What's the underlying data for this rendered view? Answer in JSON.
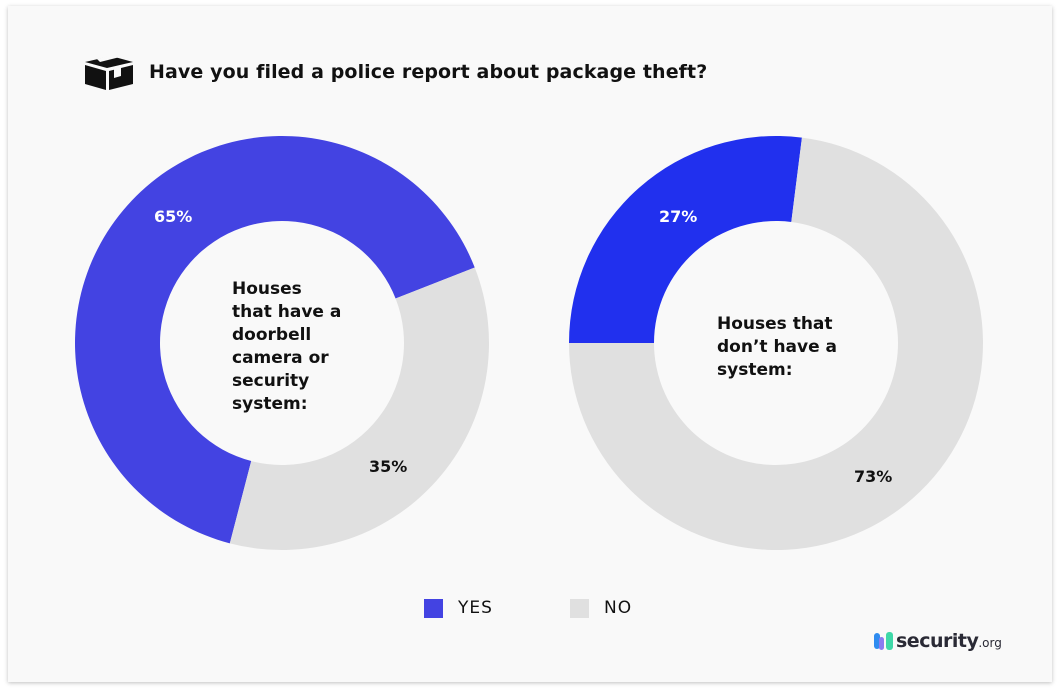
{
  "title": "Have you filed a police report about package theft?",
  "icon": "package-box-icon",
  "colors": {
    "yes_left": "#4343e2",
    "yes_right": "#2130ee",
    "no": "#e0e0e0",
    "background": "#f9f9f9"
  },
  "chart_data": [
    {
      "type": "pie",
      "variant": "donut",
      "center_label": "Houses that have a doorbell camera or security system:",
      "categories": [
        "YES",
        "NO"
      ],
      "values": [
        65,
        35
      ],
      "labels": [
        "65%",
        "35%"
      ]
    },
    {
      "type": "pie",
      "variant": "donut",
      "center_label": "Houses that don’t have a system:",
      "categories": [
        "YES",
        "NO"
      ],
      "values": [
        27,
        73
      ],
      "labels": [
        "27%",
        "73%"
      ]
    }
  ],
  "legend": {
    "placement": "bottom",
    "items": [
      {
        "label": "YES",
        "color": "#4343e2"
      },
      {
        "label": "NO",
        "color": "#e0e0e0"
      }
    ]
  },
  "logo": {
    "name": "security",
    "suffix": ".org"
  }
}
